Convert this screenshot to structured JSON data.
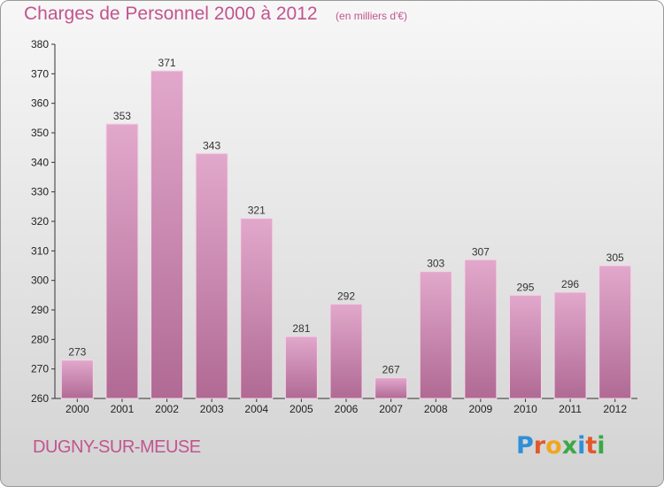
{
  "header": {
    "title": "Charges de Personnel 2000 à 2012",
    "subtitle": "(en milliers d'€)"
  },
  "footer": {
    "town": "DUGNY-SUR-MEUSE",
    "logo_text": "Proxiti",
    "logo_letters": [
      "P",
      "r",
      "o",
      "x",
      "i",
      "t",
      "i"
    ],
    "logo_colors": [
      "#2f8fd8",
      "#e2582b",
      "#f2a51f",
      "#3aa847",
      "#2f8fd8",
      "#e2582b",
      "#3aa847"
    ]
  },
  "colors": {
    "accent": "#c2548f",
    "bar_top": "#e2a8cc",
    "bar_bottom": "#b06a94",
    "bar_edge": "#f4d6e7"
  },
  "chart_data": {
    "type": "bar",
    "title": "Charges de Personnel 2000 à 2012",
    "subtitle": "(en milliers d'€)",
    "categories": [
      "2000",
      "2001",
      "2002",
      "2003",
      "2004",
      "2005",
      "2006",
      "2007",
      "2008",
      "2009",
      "2010",
      "2011",
      "2012"
    ],
    "values": [
      273,
      353,
      371,
      343,
      321,
      281,
      292,
      267,
      303,
      307,
      295,
      296,
      305
    ],
    "ylim": [
      260,
      380
    ],
    "yticks": [
      260,
      270,
      280,
      290,
      300,
      310,
      320,
      330,
      340,
      350,
      360,
      370,
      380
    ],
    "grid": false,
    "legend": "none"
  }
}
